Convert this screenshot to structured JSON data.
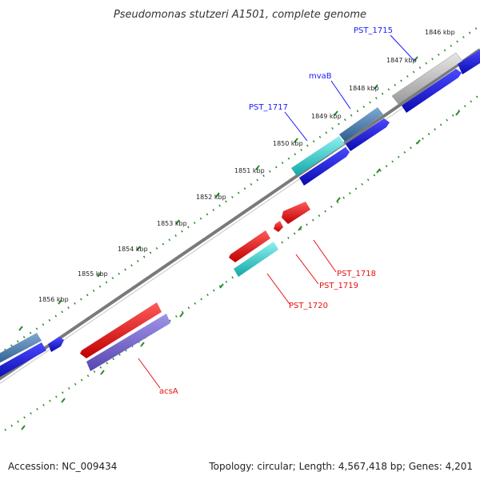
{
  "header": {
    "title": "Pseudomonas stutzeri A1501, complete genome"
  },
  "footer": {
    "accession": "Accession: NC_009434",
    "summary": "Topology: circular; Length: 4,567,418 bp; Genes: 4,201"
  },
  "ticks": [
    "1846 kbp",
    "1847 kbp",
    "1848 kbp",
    "1849 kbp",
    "1850 kbp",
    "1851 kbp",
    "1852 kbp",
    "1853 kbp",
    "1854 kbp",
    "1855 kbp",
    "1856 kbp"
  ],
  "genes": [
    {
      "name": "PST_1715",
      "strand": "forward"
    },
    {
      "name": "mvaB",
      "strand": "forward"
    },
    {
      "name": "PST_1717",
      "strand": "forward"
    },
    {
      "name": "PST_1718",
      "strand": "reverse"
    },
    {
      "name": "PST_1719",
      "strand": "reverse"
    },
    {
      "name": "PST_1720",
      "strand": "reverse"
    },
    {
      "name": "acsA",
      "strand": "reverse"
    }
  ],
  "colors": {
    "forward_label": "#1a1aff",
    "reverse_label": "#e81010",
    "backbone": "#7a7a7a",
    "tick": "#2a8a2a",
    "cds_blue": "#1010d8",
    "cds_red": "#e81010",
    "cds_cyan": "#22c8c8",
    "cds_steel": "#4a7fb0",
    "cds_gray": "#b8b8b8",
    "cds_purple": "#7060c8"
  }
}
